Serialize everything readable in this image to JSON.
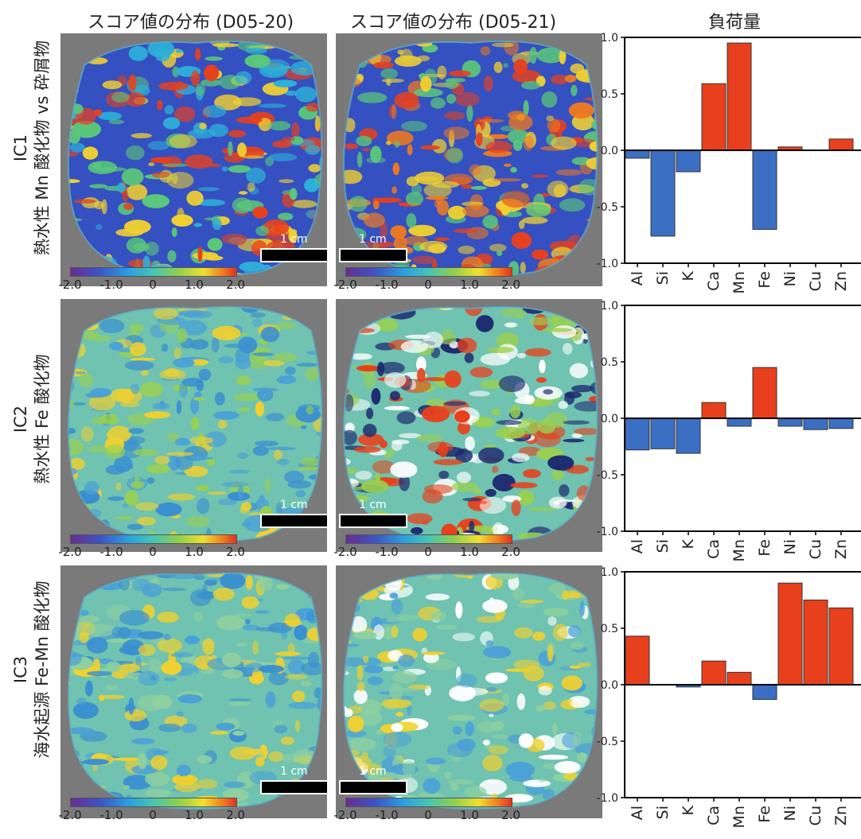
{
  "columns": {
    "d0520": "スコア値の分布 (D05-20)",
    "d0521": "スコア値の分布 (D05-21)",
    "loadings": "負荷量"
  },
  "rows": [
    {
      "id": "IC1",
      "line1": "IC1",
      "line2": "熱水性 Mn 酸化物 vs 砕屑物"
    },
    {
      "id": "IC2",
      "line1": "IC2",
      "line2": "熱水性 Fe 酸化物"
    },
    {
      "id": "IC3",
      "line1": "IC3",
      "line2": "海水起源 Fe-Mn 酸化物"
    }
  ],
  "scale_label": "1 cm",
  "colorbar_ticks": [
    "-2.0",
    "-1.0",
    "0",
    "1.0",
    "2.0"
  ],
  "colors": {
    "positive": "#e8401c",
    "negative": "#3a6fc4",
    "map_bg": "#7a7a7a"
  },
  "chart_data": [
    {
      "type": "bar",
      "title": "",
      "categories": [
        "Al",
        "Si",
        "K",
        "Ca",
        "Mn",
        "Fe",
        "Ni",
        "Cu",
        "Zn"
      ],
      "series": [
        {
          "values": [
            -0.07,
            -0.76,
            -0.19,
            0.59,
            0.95,
            -0.7,
            0.03,
            0.0,
            0.1
          ]
        }
      ],
      "ylim": [
        -1.0,
        1.0
      ],
      "yticks": [
        "1.0",
        "0.5",
        "0.0",
        "-0.5",
        "-1.0"
      ]
    },
    {
      "type": "bar",
      "title": "",
      "categories": [
        "Al",
        "Si",
        "K",
        "Ca",
        "Mn",
        "Fe",
        "Ni",
        "Cu",
        "Zn"
      ],
      "series": [
        {
          "values": [
            -0.28,
            -0.27,
            -0.31,
            0.14,
            -0.07,
            0.45,
            -0.07,
            -0.1,
            -0.09
          ]
        }
      ],
      "ylim": [
        -1.0,
        1.0
      ],
      "yticks": [
        "1.0",
        "0.5",
        "0.0",
        "-0.5",
        "-1.0"
      ]
    },
    {
      "type": "bar",
      "title": "",
      "categories": [
        "Al",
        "Si",
        "K",
        "Ca",
        "Mn",
        "Fe",
        "Ni",
        "Cu",
        "Zn"
      ],
      "series": [
        {
          "values": [
            0.43,
            0.0,
            -0.02,
            0.21,
            0.11,
            -0.13,
            0.9,
            0.75,
            0.68
          ]
        }
      ],
      "ylim": [
        -1.0,
        1.0
      ],
      "yticks": [
        "1.0",
        "0.5",
        "0.0",
        "-0.5",
        "-1.0"
      ]
    }
  ]
}
